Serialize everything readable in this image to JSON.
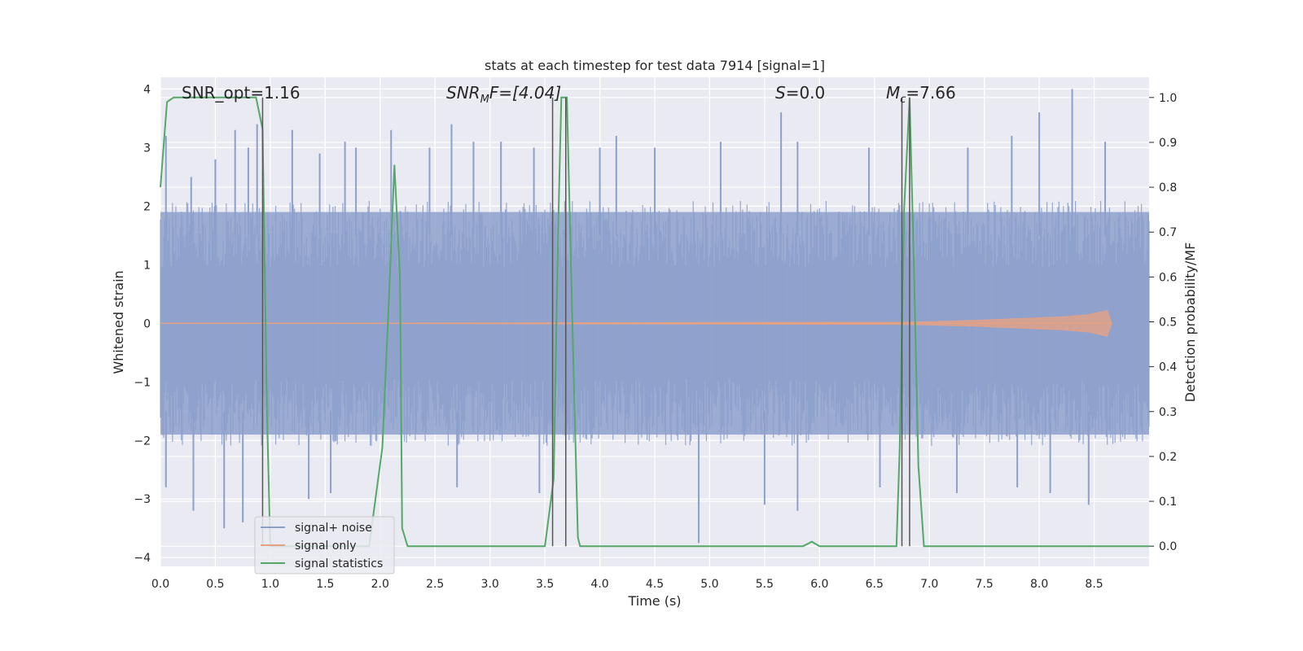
{
  "chart_data": {
    "type": "line",
    "title": "stats at each timestep for test data 7914 [signal=1]",
    "xlabel": "Time (s)",
    "ylabel": "Whitened strain",
    "ylabel_right": "Detection probability/MF",
    "xlim": [
      0,
      9.0
    ],
    "ylim": [
      -4.15,
      4.2
    ],
    "ylim_right": [
      -0.045,
      1.045
    ],
    "x_ticks": [
      "0.0",
      "0.5",
      "1.0",
      "1.5",
      "2.0",
      "2.5",
      "3.0",
      "3.5",
      "4.0",
      "4.5",
      "5.0",
      "5.5",
      "6.0",
      "6.5",
      "7.0",
      "7.5",
      "8.0",
      "8.5"
    ],
    "y_ticks": [
      "4",
      "3",
      "2",
      "1",
      "0",
      "−1",
      "−2",
      "−3",
      "−4"
    ],
    "y_ticks_right": [
      "1.0",
      "0.9",
      "0.8",
      "0.7",
      "0.6",
      "0.5",
      "0.4",
      "0.3",
      "0.2",
      "0.1",
      "0.0"
    ],
    "grid": true,
    "legend_position": "lower-left",
    "annotations": {
      "snr_opt": "SNR_opt=1.16",
      "snr_mf_main": "SNR",
      "snr_mf_sub": "M",
      "snr_mf_tail": "F=[4.04]",
      "s_main": "S",
      "s_tail": "=0.0",
      "mc_main": "M",
      "mc_sub": "c",
      "mc_tail": "=7.66"
    },
    "series": [
      {
        "name": "signal+ noise",
        "color": "#8da0cb",
        "description_envelope": {
          "typical_upper": 1.9,
          "typical_lower": -1.9,
          "max": 4.0,
          "min": -3.75
        },
        "peaks": [
          [
            0.05,
            3.2
          ],
          [
            0.28,
            2.5
          ],
          [
            0.5,
            2.8
          ],
          [
            0.68,
            3.3
          ],
          [
            0.8,
            3.0
          ],
          [
            0.88,
            3.4
          ],
          [
            1.2,
            3.3
          ],
          [
            1.45,
            2.9
          ],
          [
            1.68,
            3.1
          ],
          [
            1.78,
            3.0
          ],
          [
            2.1,
            3.3
          ],
          [
            2.45,
            3.0
          ],
          [
            2.65,
            3.4
          ],
          [
            2.85,
            3.1
          ],
          [
            3.1,
            3.1
          ],
          [
            3.4,
            3.0
          ],
          [
            4.0,
            3.0
          ],
          [
            4.15,
            3.2
          ],
          [
            4.5,
            3.0
          ],
          [
            5.1,
            3.1
          ],
          [
            5.65,
            3.6
          ],
          [
            5.8,
            3.1
          ],
          [
            6.45,
            3.0
          ],
          [
            7.35,
            3.0
          ],
          [
            7.75,
            3.2
          ],
          [
            8.0,
            3.6
          ],
          [
            8.3,
            4.0
          ],
          [
            8.6,
            3.1
          ]
        ],
        "troughs": [
          [
            0.05,
            -2.8
          ],
          [
            0.3,
            -3.2
          ],
          [
            0.58,
            -3.5
          ],
          [
            0.75,
            -3.4
          ],
          [
            1.35,
            -3.0
          ],
          [
            1.55,
            -2.9
          ],
          [
            2.7,
            -2.8
          ],
          [
            3.45,
            -2.9
          ],
          [
            4.9,
            -3.75
          ],
          [
            5.5,
            -3.1
          ],
          [
            5.8,
            -3.2
          ],
          [
            6.55,
            -2.8
          ],
          [
            7.25,
            -2.9
          ],
          [
            7.8,
            -2.8
          ],
          [
            8.1,
            -2.9
          ],
          [
            8.45,
            -3.1
          ]
        ]
      },
      {
        "name": "signal only",
        "color": "#e5a184",
        "points": [
          [
            0,
            0
          ],
          [
            5.5,
            0
          ],
          [
            7.0,
            0
          ],
          [
            7.8,
            0
          ],
          [
            8.2,
            0
          ],
          [
            8.5,
            0
          ],
          [
            8.65,
            0
          ]
        ],
        "envelope": [
          [
            0,
            0.0
          ],
          [
            6.8,
            0.02
          ],
          [
            7.4,
            0.05
          ],
          [
            7.8,
            0.08
          ],
          [
            8.2,
            0.11
          ],
          [
            8.45,
            0.15
          ],
          [
            8.62,
            0.22
          ],
          [
            8.66,
            0.0
          ]
        ]
      },
      {
        "name": "signal statistics",
        "color": "#55a868",
        "axis": "right",
        "points": [
          [
            0.0,
            0.8
          ],
          [
            0.06,
            0.99
          ],
          [
            0.12,
            1.0
          ],
          [
            0.5,
            1.0
          ],
          [
            0.87,
            1.0
          ],
          [
            0.93,
            0.93
          ],
          [
            0.97,
            0.3
          ],
          [
            1.0,
            0.0
          ],
          [
            1.05,
            0.0
          ],
          [
            1.9,
            0.0
          ],
          [
            2.02,
            0.22
          ],
          [
            2.08,
            0.55
          ],
          [
            2.13,
            0.85
          ],
          [
            2.18,
            0.6
          ],
          [
            2.2,
            0.04
          ],
          [
            2.25,
            0.0
          ],
          [
            2.5,
            0.0
          ],
          [
            3.5,
            0.0
          ],
          [
            3.58,
            0.15
          ],
          [
            3.62,
            0.7
          ],
          [
            3.65,
            1.0
          ],
          [
            3.7,
            1.0
          ],
          [
            3.75,
            0.5
          ],
          [
            3.8,
            0.02
          ],
          [
            3.82,
            0.0
          ],
          [
            4.5,
            0.0
          ],
          [
            5.85,
            0.0
          ],
          [
            5.93,
            0.01
          ],
          [
            6.0,
            0.0
          ],
          [
            6.7,
            0.0
          ],
          [
            6.73,
            0.22
          ],
          [
            6.77,
            0.75
          ],
          [
            6.82,
            1.0
          ],
          [
            6.86,
            0.62
          ],
          [
            6.9,
            0.18
          ],
          [
            6.95,
            0.0
          ],
          [
            9.0,
            0.0
          ]
        ]
      }
    ],
    "vertical_lines": [
      0.93,
      3.57,
      3.69,
      6.75,
      6.82
    ]
  }
}
